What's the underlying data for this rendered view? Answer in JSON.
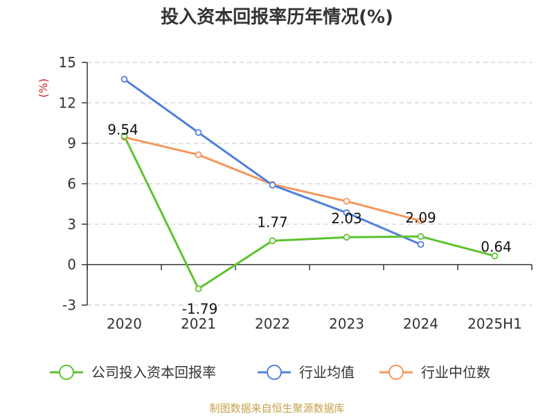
{
  "chart_data": {
    "type": "line",
    "title": "投入资本回报率历年情况(%)",
    "ylabel": "(%)",
    "xlabel": "",
    "categories": [
      "2020",
      "2021",
      "2022",
      "2023",
      "2024",
      "2025H1"
    ],
    "ylim": [
      -3,
      15
    ],
    "yticks": [
      -3,
      0,
      3,
      6,
      9,
      12,
      15
    ],
    "grid": true,
    "legend_position": "bottom",
    "series": [
      {
        "name": "公司投入资本回报率",
        "color": "#5cc32d",
        "values": [
          9.54,
          -1.79,
          1.77,
          2.03,
          2.09,
          0.64
        ],
        "labels": [
          "9.54",
          "-1.79",
          "1.77",
          "2.03",
          "2.09",
          "0.64"
        ]
      },
      {
        "name": "行业均值",
        "color": "#4f7fdf",
        "values": [
          13.75,
          9.8,
          5.9,
          3.85,
          1.5,
          null
        ]
      },
      {
        "name": "行业中位数",
        "color": "#f59559",
        "values": [
          9.45,
          8.15,
          5.95,
          4.7,
          3.25,
          null
        ]
      }
    ]
  },
  "source": "制图数据来自恒生聚源数据库"
}
